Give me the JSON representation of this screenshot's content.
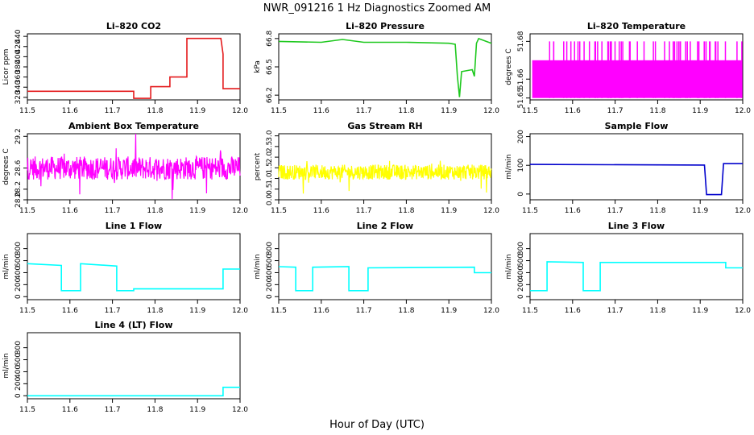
{
  "figure": {
    "title": "NWR_091216  1 Hz Diagnostics Zoomed AM",
    "xlabel": "Hour of Day (UTC)"
  },
  "chart_data": [
    {
      "type": "line",
      "title": "Li–820 CO2",
      "ylabel": "Licor ppm",
      "color": "#e41a1c",
      "xlim": [
        11.5,
        12.0
      ],
      "ylim": [
        315,
        445
      ],
      "xticks": [
        11.5,
        11.6,
        11.7,
        11.8,
        11.9,
        12.0
      ],
      "xticklabels": [
        "11.5",
        "11.6",
        "11.7",
        "11.8",
        "11.9",
        "12.0"
      ],
      "yticks": [
        320,
        340,
        360,
        380,
        400,
        420,
        440
      ],
      "yticklabels": [
        "320",
        "340",
        "360",
        "380",
        "400",
        "420",
        "440"
      ],
      "x": [
        11.5,
        11.75,
        11.75,
        11.79,
        11.79,
        11.835,
        11.835,
        11.875,
        11.875,
        11.955,
        11.96,
        11.96,
        12.0
      ],
      "y": [
        332,
        332,
        318,
        318,
        341,
        341,
        360,
        360,
        436,
        436,
        405,
        337,
        337
      ]
    },
    {
      "type": "line",
      "title": "Li–820 Pressure",
      "ylabel": "kPa",
      "color": "#1ec81e",
      "xlim": [
        11.5,
        12.0
      ],
      "ylim": [
        66.15,
        66.85
      ],
      "xticks": [
        11.5,
        11.6,
        11.7,
        11.8,
        11.9,
        12.0
      ],
      "xticklabels": [
        "11.5",
        "11.6",
        "11.7",
        "11.8",
        "11.9",
        "12.0"
      ],
      "yticks": [
        66.2,
        66.5,
        66.8
      ],
      "yticklabels": [
        "66.2",
        "66.5",
        "66.8"
      ],
      "x": [
        11.5,
        11.6,
        11.65,
        11.7,
        11.8,
        11.9,
        11.915,
        11.92,
        11.925,
        11.93,
        11.955,
        11.96,
        11.965,
        11.97,
        12.0
      ],
      "y": [
        66.77,
        66.76,
        66.79,
        66.76,
        66.76,
        66.75,
        66.74,
        66.4,
        66.18,
        66.45,
        66.47,
        66.4,
        66.75,
        66.8,
        66.75
      ]
    },
    {
      "type": "line",
      "title": "Li–820 Temperature",
      "ylabel": "degrees C",
      "color": "#ff00ff",
      "xlim": [
        11.5,
        12.0
      ],
      "ylim": [
        51.649,
        51.684
      ],
      "xticks": [
        11.5,
        11.6,
        11.7,
        11.8,
        11.9,
        12.0
      ],
      "xticklabels": [
        "11.5",
        "11.6",
        "11.7",
        "11.8",
        "11.9",
        "12.0"
      ],
      "yticks": [
        51.65,
        51.66,
        51.68
      ],
      "yticklabels": [
        "51.65",
        "51.66",
        "51.68"
      ],
      "x": [
        11.5,
        12.0
      ],
      "y": [
        51.65,
        51.67
      ]
    },
    {
      "type": "line",
      "title": "Ambient Box Temperature",
      "ylabel": "degrees C",
      "color": "#ff00ff",
      "xlim": [
        11.5,
        12.0
      ],
      "ylim": [
        28.0,
        29.25
      ],
      "xticks": [
        11.5,
        11.6,
        11.7,
        11.8,
        11.9,
        12.0
      ],
      "xticklabels": [
        "11.5",
        "11.6",
        "11.7",
        "11.8",
        "11.9",
        "12.0"
      ],
      "yticks": [
        28.0,
        28.2,
        28.6,
        29.2
      ],
      "yticklabels": [
        "28.0",
        "28.2",
        "28.6",
        "29.2"
      ],
      "x": [
        11.5,
        12.0
      ],
      "y": [
        28.6,
        28.6
      ]
    },
    {
      "type": "line",
      "title": "Gas Stream RH",
      "ylabel": "percent",
      "color": "#ffff00",
      "xlim": [
        11.5,
        12.0
      ],
      "ylim": [
        0,
        3.1
      ],
      "xticks": [
        11.5,
        11.6,
        11.7,
        11.8,
        11.9,
        12.0
      ],
      "xticklabels": [
        "11.5",
        "11.6",
        "11.7",
        "11.8",
        "11.9",
        "12.0"
      ],
      "yticks": [
        0.0,
        0.5,
        1.0,
        1.5,
        2.0,
        2.5,
        3.0
      ],
      "yticklabels": [
        "0.0",
        "0.5",
        "1.0",
        "1.5",
        "2.0",
        "2.5",
        "3.0"
      ],
      "x": [
        11.5,
        12.0
      ],
      "y": [
        1.3,
        1.3
      ]
    },
    {
      "type": "line",
      "title": "Sample Flow",
      "ylabel": "ml/min",
      "color": "#0000cc",
      "xlim": [
        11.5,
        12.0
      ],
      "ylim": [
        -20,
        210
      ],
      "xticks": [
        11.5,
        11.6,
        11.7,
        11.8,
        11.9,
        12.0
      ],
      "xticklabels": [
        "11.5",
        "11.6",
        "11.7",
        "11.8",
        "11.9",
        "12.0"
      ],
      "yticks": [
        0,
        100,
        200
      ],
      "yticklabels": [
        "0",
        "100",
        "200"
      ],
      "x": [
        11.5,
        11.91,
        11.915,
        11.95,
        11.955,
        12.0
      ],
      "y": [
        103,
        101,
        -2,
        -2,
        106,
        106
      ]
    },
    {
      "type": "line",
      "title": "Line 1 Flow",
      "ylabel": "ml/min",
      "color": "#00ffff",
      "xlim": [
        11.5,
        12.0
      ],
      "ylim": [
        -50,
        1050
      ],
      "xticks": [
        11.5,
        11.6,
        11.7,
        11.8,
        11.9,
        12.0
      ],
      "xticklabels": [
        "11.5",
        "11.6",
        "11.7",
        "11.8",
        "11.9",
        "12.0"
      ],
      "yticks": [
        0,
        200,
        400,
        600,
        800
      ],
      "yticklabels": [
        "0",
        "200",
        "400",
        "600",
        "800"
      ],
      "x": [
        11.5,
        11.58,
        11.58,
        11.625,
        11.625,
        11.71,
        11.71,
        11.75,
        11.75,
        11.96,
        11.96,
        12.0
      ],
      "y": [
        550,
        520,
        100,
        100,
        550,
        510,
        100,
        100,
        130,
        130,
        460,
        460
      ]
    },
    {
      "type": "line",
      "title": "Line 2 Flow",
      "ylabel": "ml/min",
      "color": "#00ffff",
      "xlim": [
        11.5,
        12.0
      ],
      "ylim": [
        -50,
        1050
      ],
      "xticks": [
        11.5,
        11.6,
        11.7,
        11.8,
        11.9,
        12.0
      ],
      "xticklabels": [
        "11.5",
        "11.6",
        "11.7",
        "11.8",
        "11.9",
        "12.0"
      ],
      "yticks": [
        0,
        200,
        400,
        600,
        800
      ],
      "yticklabels": [
        "0",
        "200",
        "400",
        "600",
        "800"
      ],
      "x": [
        11.5,
        11.54,
        11.54,
        11.58,
        11.58,
        11.665,
        11.665,
        11.71,
        11.71,
        11.96,
        11.96,
        12.0
      ],
      "y": [
        500,
        490,
        100,
        100,
        490,
        500,
        100,
        100,
        480,
        490,
        400,
        400
      ]
    },
    {
      "type": "line",
      "title": "Line 3 Flow",
      "ylabel": "ml/min",
      "color": "#00ffff",
      "xlim": [
        11.5,
        12.0
      ],
      "ylim": [
        -50,
        1050
      ],
      "xticks": [
        11.5,
        11.6,
        11.7,
        11.8,
        11.9,
        12.0
      ],
      "xticklabels": [
        "11.5",
        "11.6",
        "11.7",
        "11.8",
        "11.9",
        "12.0"
      ],
      "yticks": [
        0,
        200,
        400,
        600,
        800
      ],
      "yticklabels": [
        "0",
        "200",
        "400",
        "600",
        "800"
      ],
      "x": [
        11.5,
        11.54,
        11.54,
        11.625,
        11.625,
        11.665,
        11.665,
        11.96,
        11.96,
        12.0
      ],
      "y": [
        100,
        100,
        580,
        570,
        100,
        100,
        570,
        570,
        480,
        480
      ]
    },
    {
      "type": "line",
      "title": "Line 4 (LT) Flow",
      "ylabel": "ml/min",
      "color": "#00ffff",
      "xlim": [
        11.5,
        12.0
      ],
      "ylim": [
        -50,
        1050
      ],
      "xticks": [
        11.5,
        11.6,
        11.7,
        11.8,
        11.9,
        12.0
      ],
      "xticklabels": [
        "11.5",
        "11.6",
        "11.7",
        "11.8",
        "11.9",
        "12.0"
      ],
      "yticks": [
        0,
        200,
        400,
        600,
        800
      ],
      "yticklabels": [
        "0",
        "200",
        "400",
        "600",
        "800"
      ],
      "x": [
        11.5,
        11.96,
        11.96,
        12.0
      ],
      "y": [
        0,
        0,
        140,
        140
      ]
    }
  ]
}
